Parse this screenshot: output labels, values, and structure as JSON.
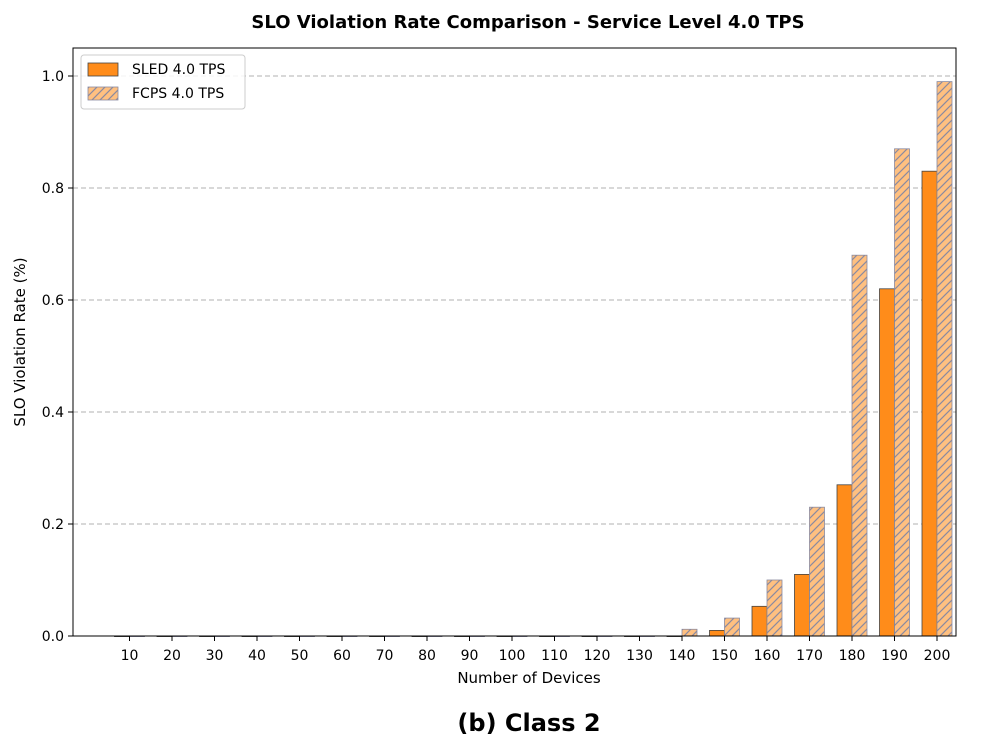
{
  "chart_data": {
    "type": "bar",
    "title": "SLO Violation Rate Comparison - Service Level 4.0 TPS",
    "xlabel": "Number of Devices",
    "ylabel": "SLO Violation Rate (%)",
    "ylim": [
      0,
      1.05
    ],
    "yticks": [
      "0.0",
      "0.2",
      "0.4",
      "0.6",
      "0.8",
      "1.0"
    ],
    "ytick_values": [
      0.0,
      0.2,
      0.4,
      0.6,
      0.8,
      1.0
    ],
    "grid": "horizontal-dashed",
    "legend_position": "top-left",
    "categories": [
      "10",
      "20",
      "30",
      "40",
      "50",
      "60",
      "70",
      "80",
      "90",
      "100",
      "110",
      "120",
      "130",
      "140",
      "150",
      "160",
      "170",
      "180",
      "190",
      "200"
    ],
    "series": [
      {
        "name": "SLED 4.0 TPS",
        "color": "#ff8c1a",
        "pattern": "solid",
        "values": [
          0,
          0,
          0,
          0,
          0,
          0,
          0,
          0,
          0,
          0,
          0,
          0,
          0,
          0,
          0.01,
          0.053,
          0.11,
          0.27,
          0.62,
          0.83
        ]
      },
      {
        "name": "FCPS 4.0 TPS",
        "color": "#ffc080",
        "pattern": "hatched",
        "values": [
          0,
          0,
          0,
          0,
          0,
          0,
          0,
          0,
          0,
          0,
          0,
          0,
          0,
          0.012,
          0.032,
          0.1,
          0.23,
          0.68,
          0.87,
          0.99
        ]
      }
    ]
  },
  "caption": "(b) Class 2"
}
